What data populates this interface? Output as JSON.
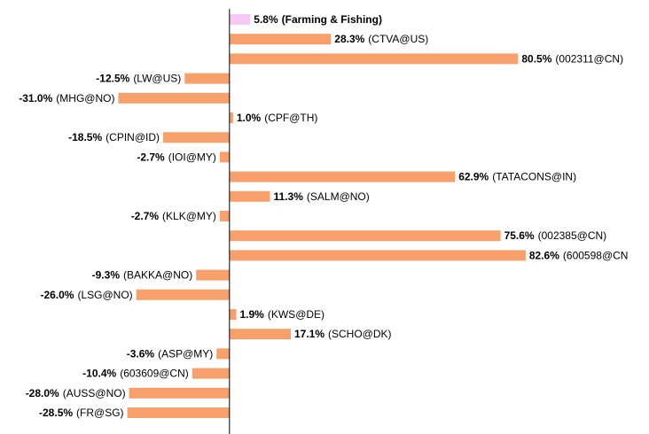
{
  "chart_data": {
    "type": "hbar",
    "categories": [
      "(Farming & Fishing)",
      "(CTVA@US)",
      "(002311@CN)",
      "(LW@US)",
      "(MHG@NO)",
      "(CPF@TH)",
      "(CPIN@ID)",
      "(IOI@MY)",
      "(TATACONS@IN)",
      "(SALM@NO)",
      "(KLK@MY)",
      "(002385@CN)",
      "(600598@CN",
      "(BAKKA@NO)",
      "(LSG@NO)",
      "(KWS@DE)",
      "(SCHO@DK)",
      "(ASP@MY)",
      "(603609@CN)",
      "(AUSS@NO)",
      "(FR@SG)"
    ],
    "values": [
      5.8,
      28.3,
      80.5,
      -12.5,
      -31.0,
      1.0,
      -18.5,
      -2.7,
      62.9,
      11.3,
      -2.7,
      75.6,
      82.6,
      -9.3,
      -26.0,
      1.9,
      17.1,
      -3.6,
      -10.4,
      -28.0,
      -28.5
    ],
    "value_labels": [
      "5.8%",
      "28.3%",
      "80.5%",
      "-12.5%",
      "-31.0%",
      "1.0%",
      "-18.5%",
      "-2.7%",
      "62.9%",
      "11.3%",
      "-2.7%",
      "75.6%",
      "82.6%",
      "-9.3%",
      "-26.0%",
      "1.9%",
      "17.1%",
      "-3.6%",
      "-10.4%",
      "-28.0%",
      "-28.5%"
    ],
    "colors": [
      "#f7c8f5",
      "#f7a06b",
      "#f7a06b",
      "#f7a06b",
      "#f7a06b",
      "#f7a06b",
      "#f7a06b",
      "#f7a06b",
      "#f7a06b",
      "#f7a06b",
      "#f7a06b",
      "#f7a06b",
      "#f7a06b",
      "#f7a06b",
      "#f7a06b",
      "#f7a06b",
      "#f7a06b",
      "#f7a06b",
      "#f7a06b",
      "#f7a06b",
      "#f7a06b"
    ],
    "xlim": [
      -64,
      117
    ]
  }
}
